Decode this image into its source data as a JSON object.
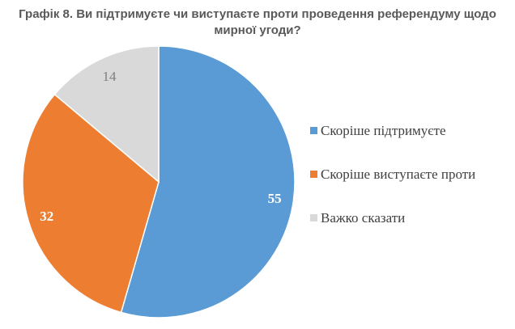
{
  "title": "Графік 8. Ви підтримуєте чи виступаєте проти проведення референдуму щодо мирної угоди?",
  "chart_data": {
    "type": "pie",
    "title": "Графік 8. Ви підтримуєте чи виступаєте проти проведення референдуму щодо мирної угоди?",
    "categories": [
      "Скоріше підтримуєте",
      "Скоріше виступаєте проти",
      "Важко сказати"
    ],
    "values": [
      55,
      32,
      14
    ],
    "colors": [
      "#5b9bd5",
      "#ed7d31",
      "#d9d9d9"
    ],
    "label_colors": [
      "#ffffff",
      "#ffffff",
      "#7f7f7f"
    ],
    "legend_position": "right"
  }
}
